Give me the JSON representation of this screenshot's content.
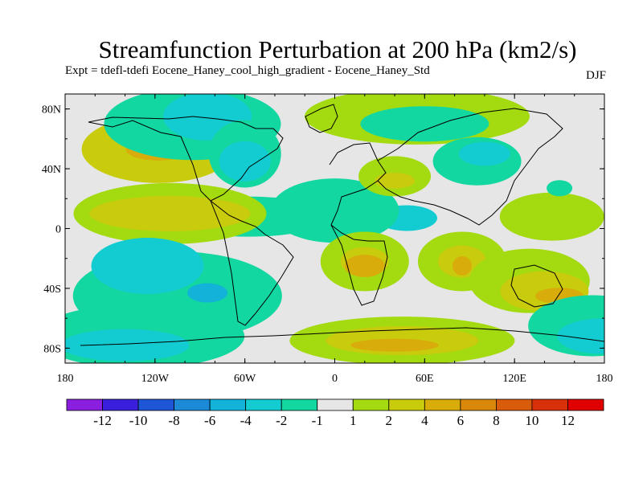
{
  "chart_data": {
    "type": "contour-map",
    "title": "Streamfunction Perturbation at 200 hPa (km2/s)",
    "subtitle": "Expt = tdefl-tdefi  Eocene_Haney_cool_high_gradient - Eocene_Haney_Std",
    "season": "DJF",
    "x_ticks": [
      "180",
      "120W",
      "60W",
      "0",
      "60E",
      "120E",
      "180"
    ],
    "y_ticks": [
      "80N",
      "40N",
      "0",
      "40S",
      "80S"
    ],
    "xlim": [
      -180,
      180
    ],
    "ylim": [
      -90,
      90
    ],
    "colorbar": {
      "labels": [
        "-12",
        "-10",
        "-8",
        "-6",
        "-4",
        "-2",
        "-1",
        "1",
        "2",
        "4",
        "6",
        "8",
        "10",
        "12"
      ],
      "colors": [
        "#8a1fe0",
        "#3a20dd",
        "#1f56d8",
        "#1d8ad8",
        "#13b2d8",
        "#12ccd2",
        "#12d7a0",
        "#e6e6e6",
        "#a3da10",
        "#c9cc0d",
        "#d8ac0b",
        "#d9880c",
        "#d85c0c",
        "#d83008",
        "#e00000"
      ]
    },
    "regions": [
      {
        "lon": -118,
        "lat": 53,
        "level": 2
      },
      {
        "lon": -118,
        "lat": 53,
        "level": 3
      },
      {
        "lon": -95,
        "lat": 70,
        "level": -1
      },
      {
        "lon": -85,
        "lat": 75,
        "level": -2
      },
      {
        "lon": -60,
        "lat": 50,
        "level": -1
      },
      {
        "lon": -60,
        "lat": 45,
        "level": -2
      },
      {
        "lon": -58,
        "lat": 8,
        "level": -1
      },
      {
        "lon": 48,
        "lat": 7,
        "level": -2
      },
      {
        "lon": 0,
        "lat": 12,
        "level": -1
      },
      {
        "lon": -110,
        "lat": 10,
        "level": 1
      },
      {
        "lon": -110,
        "lat": 10,
        "level": 2
      },
      {
        "lon": -105,
        "lat": -45,
        "level": -1
      },
      {
        "lon": -125,
        "lat": -25,
        "level": -2
      },
      {
        "lon": -85,
        "lat": -43,
        "level": -3
      },
      {
        "lon": 20,
        "lat": -22,
        "level": 1
      },
      {
        "lon": 20,
        "lat": -22,
        "level": 2
      },
      {
        "lon": 20,
        "lat": -25,
        "level": 3
      },
      {
        "lon": 85,
        "lat": -22,
        "level": 1
      },
      {
        "lon": 85,
        "lat": -22,
        "level": 2
      },
      {
        "lon": 85,
        "lat": -25,
        "level": 3
      },
      {
        "lon": 55,
        "lat": 75,
        "level": 1
      },
      {
        "lon": 60,
        "lat": 70,
        "level": -1
      },
      {
        "lon": 95,
        "lat": 45,
        "level": -1
      },
      {
        "lon": 100,
        "lat": 50,
        "level": -2
      },
      {
        "lon": 40,
        "lat": 35,
        "level": 1
      },
      {
        "lon": 40,
        "lat": 32,
        "level": 2
      },
      {
        "lon": 145,
        "lat": 8,
        "level": 1
      },
      {
        "lon": 150,
        "lat": 27,
        "level": -1
      },
      {
        "lon": 130,
        "lat": -35,
        "level": 1
      },
      {
        "lon": 140,
        "lat": -42,
        "level": 2
      },
      {
        "lon": 150,
        "lat": -45,
        "level": 3
      },
      {
        "lon": 45,
        "lat": -75,
        "level": 1
      },
      {
        "lon": 45,
        "lat": -75,
        "level": 2
      },
      {
        "lon": 40,
        "lat": -78,
        "level": 3
      },
      {
        "lon": -130,
        "lat": -72,
        "level": -1
      },
      {
        "lon": -140,
        "lat": -78,
        "level": -2
      },
      {
        "lon": 172,
        "lat": -65,
        "level": -1
      },
      {
        "lon": 178,
        "lat": -72,
        "level": -2
      }
    ]
  }
}
